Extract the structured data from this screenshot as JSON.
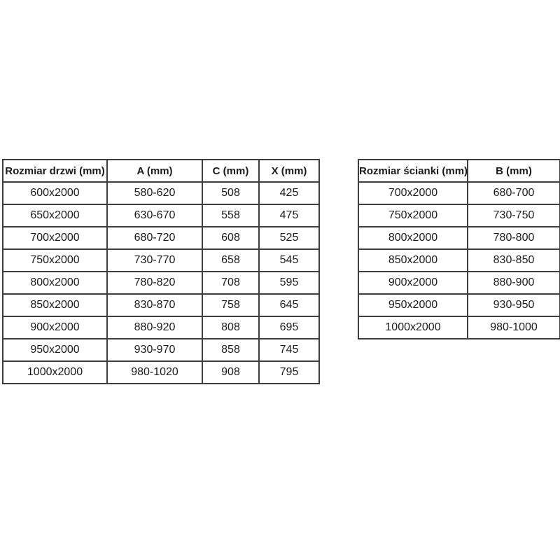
{
  "door_table": {
    "name": "Rozmiar drzwi",
    "headers": [
      "Rozmiar drzwi (mm)",
      "A (mm)",
      "C (mm)",
      "X (mm)"
    ],
    "rows": [
      [
        "600x2000",
        "580-620",
        "508",
        "425"
      ],
      [
        "650x2000",
        "630-670",
        "558",
        "475"
      ],
      [
        "700x2000",
        "680-720",
        "608",
        "525"
      ],
      [
        "750x2000",
        "730-770",
        "658",
        "545"
      ],
      [
        "800x2000",
        "780-820",
        "708",
        "595"
      ],
      [
        "850x2000",
        "830-870",
        "758",
        "645"
      ],
      [
        "900x2000",
        "880-920",
        "808",
        "695"
      ],
      [
        "950x2000",
        "930-970",
        "858",
        "745"
      ],
      [
        "1000x2000",
        "980-1020",
        "908",
        "795"
      ]
    ]
  },
  "wall_table": {
    "name": "Rozmiar ścianki",
    "headers": [
      "Rozmiar ścianki (mm)",
      "B (mm)"
    ],
    "rows": [
      [
        "700x2000",
        "680-700"
      ],
      [
        "750x2000",
        "730-750"
      ],
      [
        "800x2000",
        "780-800"
      ],
      [
        "850x2000",
        "830-850"
      ],
      [
        "900x2000",
        "880-900"
      ],
      [
        "950x2000",
        "930-950"
      ],
      [
        "1000x2000",
        "980-1000"
      ]
    ]
  },
  "colors": {
    "border": "#3d3d3d",
    "text": "#1b1b1b",
    "background": "#ffffff"
  }
}
